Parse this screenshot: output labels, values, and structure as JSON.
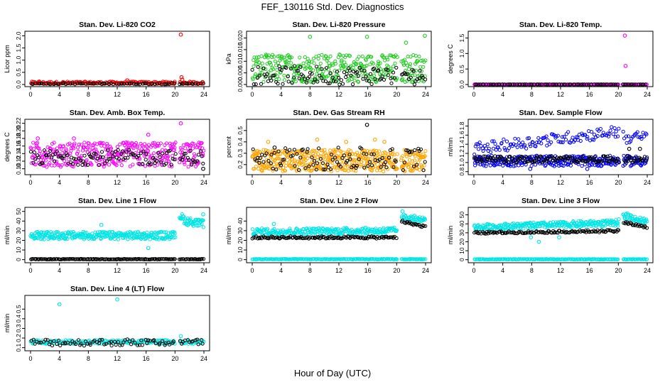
{
  "figure": {
    "title": "FEF_130116  Std. Dev. Diagnostics",
    "xlabel": "Hour of Day (UTC)"
  },
  "chart_data": [
    {
      "type": "scatter",
      "title": "Stan. Dev. Li-820 CO2",
      "xlabel": "",
      "ylabel": "Licor ppm",
      "xlim": [
        0,
        24
      ],
      "ylim": [
        0,
        2.1
      ],
      "xticks": [
        "0",
        "4",
        "8",
        "12",
        "16",
        "20",
        "24"
      ],
      "yticks": [
        "0.0",
        "0.5",
        "1.0",
        "1.5",
        "2.0"
      ],
      "series": [
        {
          "name": "main",
          "color": "#ff0000",
          "count": 190,
          "gap": [
            20.1,
            20.6
          ],
          "base_min": 0.02,
          "base_max": 0.12,
          "outliers": [
            {
              "x": 20.8,
              "y": 2.05
            },
            {
              "x": 20.9,
              "y": 0.3
            },
            {
              "x": 21.0,
              "y": 0.2
            },
            {
              "x": 13.4,
              "y": 0.17
            },
            {
              "x": 1.2,
              "y": 0.12
            }
          ]
        },
        {
          "name": "secondary",
          "color": "#000000",
          "count": 80,
          "gap": [
            20.1,
            20.6
          ],
          "base_min": 0.01,
          "base_max": 0.06,
          "outliers": []
        }
      ]
    },
    {
      "type": "scatter",
      "title": "Stan. Dev. Li-820 Pressure",
      "xlabel": "",
      "ylabel": "kPa",
      "xlim": [
        0,
        24
      ],
      "ylim": [
        0,
        0.022
      ],
      "xticks": [
        "0",
        "4",
        "8",
        "12",
        "16",
        "20",
        "24"
      ],
      "yticks": [
        "0.000",
        "0.005",
        "0.010",
        "0.015",
        "0.020"
      ],
      "series": [
        {
          "name": "main",
          "color": "#22cc22",
          "count": 360,
          "gap": [
            20.1,
            20.6
          ],
          "base_min": 0.001,
          "base_max": 0.013,
          "outliers": [
            {
              "x": 8.0,
              "y": 0.0205
            },
            {
              "x": 15.9,
              "y": 0.0205
            },
            {
              "x": 23.9,
              "y": 0.021
            },
            {
              "x": 21.3,
              "y": 0.018
            }
          ]
        },
        {
          "name": "secondary",
          "color": "#000000",
          "count": 120,
          "gap": [
            20.1,
            20.6
          ],
          "base_min": 0.0,
          "base_max": 0.008,
          "outliers": []
        }
      ]
    },
    {
      "type": "scatter",
      "title": "Stan. Dev. Li-820 Temp.",
      "xlabel": "",
      "ylabel": "degrees C",
      "xlim": [
        0,
        24
      ],
      "ylim": [
        0,
        1.65
      ],
      "xticks": [
        "0",
        "4",
        "8",
        "12",
        "16",
        "20",
        "24"
      ],
      "yticks": [
        "0.0",
        "0.5",
        "1.0",
        "1.5"
      ],
      "series": [
        {
          "name": "main",
          "color": "#ff00ff",
          "count": 180,
          "gap": [
            20.1,
            20.6
          ],
          "base_min": 0.0,
          "base_max": 0.005,
          "outliers": [
            {
              "x": 20.9,
              "y": 1.58
            },
            {
              "x": 21.0,
              "y": 0.6
            }
          ]
        },
        {
          "name": "secondary",
          "color": "#000000",
          "count": 90,
          "gap": [
            20.1,
            20.6
          ],
          "base_min": 0.0,
          "base_max": 0.004,
          "outliers": []
        }
      ]
    },
    {
      "type": "scatter",
      "title": "Stan. Dev. Amb. Box Temp.",
      "xlabel": "",
      "ylabel": "degrees C",
      "xlim": [
        0,
        24
      ],
      "ylim": [
        0.09,
        0.225
      ],
      "xticks": [
        "0",
        "4",
        "8",
        "12",
        "16",
        "20",
        "24"
      ],
      "yticks": [
        "0.10",
        "0.12",
        "0.14",
        "0.16",
        "0.18",
        "0.20",
        "0.22"
      ],
      "series": [
        {
          "name": "main",
          "color": "#ff00ff",
          "count": 380,
          "gap": [
            20.1,
            20.6
          ],
          "base_min": 0.105,
          "base_max": 0.17,
          "outliers": [
            {
              "x": 1.0,
              "y": 0.18
            },
            {
              "x": 6.0,
              "y": 0.18
            },
            {
              "x": 20.8,
              "y": 0.22
            },
            {
              "x": 16.3,
              "y": 0.19
            }
          ]
        },
        {
          "name": "secondary",
          "color": "#000000",
          "count": 120,
          "gap": [
            20.1,
            20.6
          ],
          "base_min": 0.11,
          "base_max": 0.15,
          "outliers": [
            {
              "x": 23.9,
              "y": 0.1
            }
          ]
        }
      ]
    },
    {
      "type": "scatter",
      "title": "Stan. Dev. Gas Stream RH",
      "xlabel": "",
      "ylabel": "percent",
      "xlim": [
        0,
        24
      ],
      "ylim": [
        0.13,
        0.58
      ],
      "xticks": [
        "0",
        "4",
        "8",
        "12",
        "16",
        "20",
        "24"
      ],
      "yticks": [
        "0.2",
        "0.3",
        "0.4",
        "0.5"
      ],
      "series": [
        {
          "name": "main",
          "color": "#ffa500",
          "count": 500,
          "gap": [
            20.1,
            20.6
          ],
          "base_min": 0.14,
          "base_max": 0.33,
          "outliers": [
            {
              "x": 2.2,
              "y": 0.4
            },
            {
              "x": 9.0,
              "y": 0.42
            },
            {
              "x": 13.0,
              "y": 0.4
            },
            {
              "x": 17.0,
              "y": 0.42
            },
            {
              "x": 18.3,
              "y": 0.4
            }
          ]
        },
        {
          "name": "secondary",
          "color": "#000000",
          "count": 110,
          "gap": [
            20.1,
            20.6
          ],
          "base_min": 0.15,
          "base_max": 0.35,
          "outliers": [
            {
              "x": 15.9,
              "y": 0.55
            },
            {
              "x": 3.1,
              "y": 0.35
            }
          ]
        }
      ]
    },
    {
      "type": "scatter",
      "title": "Stan. Dev. Sample Flow",
      "xlabel": "",
      "ylabel": "ml/min",
      "xlim": [
        0,
        24
      ],
      "ylim": [
        0.78,
        1.9
      ],
      "xticks": [
        "0",
        "4",
        "8",
        "12",
        "16",
        "20",
        "24"
      ],
      "yticks": [
        "0.8",
        "1.0",
        "1.2",
        "1.4",
        "1.6",
        "1.8"
      ],
      "series": [
        {
          "name": "upper-trend",
          "color": "#0000ff",
          "count": 150,
          "gap": [
            20.1,
            20.6
          ],
          "trend": [
            [
              0,
              1.3
            ],
            [
              20,
              1.68
            ],
            [
              21,
              1.55
            ],
            [
              24,
              1.55
            ]
          ],
          "spread": 0.13,
          "outliers": []
        },
        {
          "name": "lower-band",
          "color": "#0000ff",
          "count": 300,
          "gap": [
            20.1,
            20.6
          ],
          "base_min": 0.92,
          "base_max": 1.15,
          "outliers": [
            {
              "x": 7.8,
              "y": 0.86
            },
            {
              "x": 15.7,
              "y": 0.86
            }
          ]
        },
        {
          "name": "secondary",
          "color": "#000000",
          "count": 160,
          "gap": [
            20.1,
            20.6
          ],
          "base_min": 1.0,
          "base_max": 1.14,
          "outliers": [
            {
              "x": 21.5,
              "y": 1.3
            },
            {
              "x": 23.0,
              "y": 1.3
            }
          ]
        }
      ]
    },
    {
      "type": "scatter",
      "title": "Stan. Dev. Line 1 Flow",
      "xlabel": "",
      "ylabel": "ml/min",
      "xlim": [
        0,
        24
      ],
      "ylim": [
        -1,
        52
      ],
      "xticks": [
        "0",
        "4",
        "8",
        "12",
        "16",
        "20",
        "24"
      ],
      "yticks": [
        "0",
        "10",
        "20",
        "30",
        "40",
        "50"
      ],
      "series": [
        {
          "name": "main",
          "color": "#00e5e5",
          "count": 360,
          "gap": [
            20.1,
            20.6
          ],
          "trend": [
            [
              0,
              25
            ],
            [
              20,
              25
            ],
            [
              20.6,
              46
            ],
            [
              21.5,
              40
            ],
            [
              24,
              37
            ]
          ],
          "spread": 4.0,
          "outliers": [
            {
              "x": 9.8,
              "y": 36
            },
            {
              "x": 16.3,
              "y": 12
            },
            {
              "x": 23.9,
              "y": 47
            }
          ]
        },
        {
          "name": "zero-line",
          "color": "#000000",
          "count": 160,
          "gap": [
            20.1,
            20.6
          ],
          "base_min": 0.2,
          "base_max": 0.8,
          "outliers": []
        }
      ]
    },
    {
      "type": "scatter",
      "title": "Stan. Dev. Line 2 Flow",
      "xlabel": "",
      "ylabel": "ml/min",
      "xlim": [
        0,
        24
      ],
      "ylim": [
        -1,
        52
      ],
      "xticks": [
        "0",
        "4",
        "8",
        "12",
        "16",
        "20",
        "24"
      ],
      "yticks": [
        "0",
        "10",
        "20",
        "30",
        "40"
      ],
      "series": [
        {
          "name": "main",
          "color": "#00e5e5",
          "count": 300,
          "gap": [
            20.1,
            20.6
          ],
          "trend": [
            [
              0,
              29
            ],
            [
              20,
              30
            ],
            [
              20.6,
              44
            ],
            [
              24,
              41
            ]
          ],
          "spread": 3.5,
          "outliers": [
            {
              "x": 20.8,
              "y": 50
            },
            {
              "x": 3.0,
              "y": 37
            }
          ]
        },
        {
          "name": "secondary",
          "color": "#000000",
          "count": 150,
          "gap": [
            20.1,
            20.6
          ],
          "trend": [
            [
              0,
              23
            ],
            [
              20,
              23
            ],
            [
              20.6,
              40
            ],
            [
              24,
              34
            ]
          ],
          "spread": 1.2,
          "outliers": []
        },
        {
          "name": "zero-line",
          "color": "#00e5e5",
          "count": 200,
          "gap": [
            20.1,
            20.6
          ],
          "base_min": 0.2,
          "base_max": 0.8,
          "outliers": []
        }
      ]
    },
    {
      "type": "scatter",
      "title": "Stan. Dev. Line 3 Flow",
      "xlabel": "",
      "ylabel": "ml/min",
      "xlim": [
        0,
        24
      ],
      "ylim": [
        -1,
        56
      ],
      "xticks": [
        "0",
        "4",
        "8",
        "12",
        "16",
        "20",
        "24"
      ],
      "yticks": [
        "0",
        "10",
        "20",
        "30",
        "40",
        "50"
      ],
      "series": [
        {
          "name": "main",
          "color": "#00e5e5",
          "count": 320,
          "gap": [
            20.1,
            20.6
          ],
          "trend": [
            [
              0,
              36
            ],
            [
              20,
              41
            ],
            [
              20.6,
              50
            ],
            [
              24,
              42
            ]
          ],
          "spread": 3.5,
          "outliers": [
            {
              "x": 9.0,
              "y": 20
            },
            {
              "x": 11.8,
              "y": 25
            },
            {
              "x": 7.9,
              "y": 25
            }
          ]
        },
        {
          "name": "secondary",
          "color": "#000000",
          "count": 150,
          "gap": [
            20.1,
            20.6
          ],
          "trend": [
            [
              0,
              30
            ],
            [
              20,
              32
            ],
            [
              20.6,
              42
            ],
            [
              24,
              36
            ]
          ],
          "spread": 1.2,
          "outliers": []
        },
        {
          "name": "zero-line",
          "color": "#00e5e5",
          "count": 200,
          "gap": [
            20.1,
            20.6
          ],
          "base_min": 0.2,
          "base_max": 0.8,
          "outliers": []
        }
      ]
    },
    {
      "type": "scatter",
      "title": "Stan. Dev. Line 4 (LT) Flow",
      "xlabel": "",
      "ylabel": "ml/min",
      "xlim": [
        0,
        24
      ],
      "ylim": [
        0.09,
        0.62
      ],
      "xticks": [
        "0",
        "4",
        "8",
        "12",
        "16",
        "20",
        "24"
      ],
      "yticks": [
        "0.1",
        "0.2",
        "0.3",
        "0.4",
        "0.5"
      ],
      "series": [
        {
          "name": "main",
          "color": "#00e5e5",
          "count": 220,
          "gap": [
            20.1,
            20.6
          ],
          "base_min": 0.14,
          "base_max": 0.18,
          "outliers": [
            {
              "x": 4.0,
              "y": 0.55
            },
            {
              "x": 12.0,
              "y": 0.6
            },
            {
              "x": 20.8,
              "y": 0.22
            }
          ]
        },
        {
          "name": "secondary",
          "color": "#000000",
          "count": 90,
          "gap": [
            20.1,
            20.6
          ],
          "base_min": 0.12,
          "base_max": 0.19,
          "outliers": []
        }
      ]
    }
  ]
}
